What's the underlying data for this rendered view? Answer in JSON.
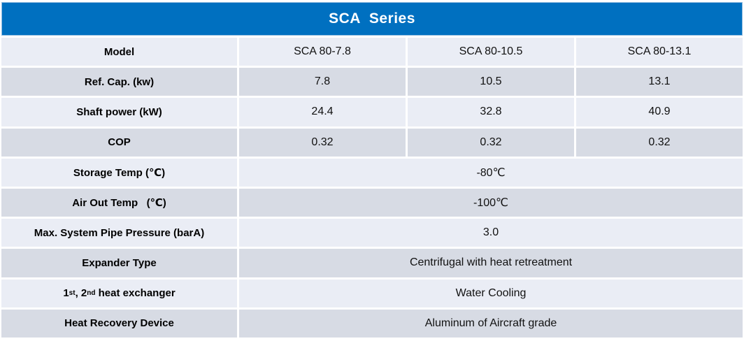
{
  "colors": {
    "header_bg": "#0070C0",
    "header_border": "#8FBADF",
    "row_light": "#EAEDF5",
    "row_dark": "#D7DBE4",
    "title_text": "#FFFFFF",
    "body_text": "#111111"
  },
  "table": {
    "title": "SCA  Series",
    "rows": [
      {
        "label": "Model",
        "values": [
          "SCA 80-7.8",
          "SCA 80-10.5",
          "SCA 80-13.1"
        ]
      },
      {
        "label": "Ref. Cap. (kw)",
        "values": [
          "7.8",
          "10.5",
          "13.1"
        ]
      },
      {
        "label": "Shaft power (kW)",
        "values": [
          "24.4",
          "32.8",
          "40.9"
        ]
      },
      {
        "label": "COP",
        "values": [
          "0.32",
          "0.32",
          "0.32"
        ]
      },
      {
        "label": "Storage Temp (℃)",
        "merged_value": "-80℃"
      },
      {
        "label": "Air Out Temp   (℃)",
        "merged_value": "-100℃"
      },
      {
        "label": "Max. System Pipe Pressure (barA)",
        "merged_value": "3.0"
      },
      {
        "label": "Expander Type",
        "merged_value": "Centrifugal with heat retreatment"
      },
      {
        "label_parts": [
          "1",
          "st",
          ", 2",
          "nd",
          " heat exchanger"
        ],
        "merged_value": "Water Cooling"
      },
      {
        "label": "Heat Recovery Device",
        "merged_value": "Aluminum of Aircraft grade"
      }
    ]
  }
}
